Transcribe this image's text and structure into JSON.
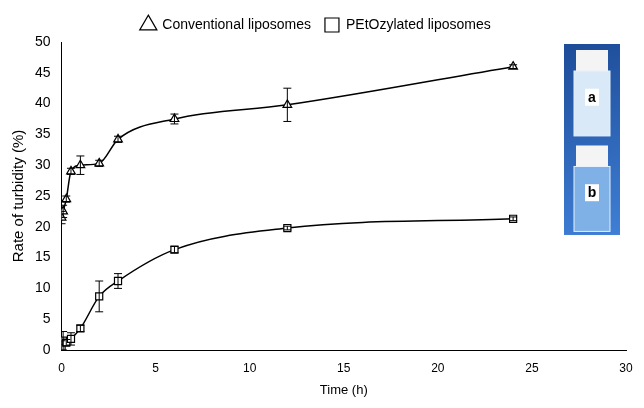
{
  "chart_data": {
    "type": "line",
    "x_label": "Time (h)",
    "y_label": "Rate of turbidity (%)",
    "x": [
      0,
      0.083,
      0.25,
      0.5,
      1,
      2,
      3,
      6,
      12,
      24
    ],
    "series": [
      {
        "name": "Conventional liposomes",
        "color": "#000000",
        "marker": "triangle",
        "values": [
          21.5,
          22.5,
          24.5,
          29,
          30,
          30.3,
          34.2,
          37.5,
          39.8,
          46
        ],
        "errors": [
          1,
          1,
          0.5,
          0.5,
          1.5,
          0.5,
          0.5,
          0.8,
          2.7,
          0.3
        ]
      },
      {
        "name": "PEtOzylated liposomes",
        "color": "#000000",
        "marker": "square",
        "values": [
          0.5,
          1.5,
          1.2,
          1.8,
          3.5,
          8.7,
          11.2,
          16.3,
          19.8,
          21.3
        ],
        "errors": [
          1,
          1.5,
          0.5,
          1,
          0.5,
          2.5,
          1.2,
          0.5,
          0.3,
          0.3
        ]
      }
    ],
    "xlim": [
      0,
      30
    ],
    "xticks": [
      0,
      5,
      10,
      15,
      20,
      25,
      30
    ],
    "ylim": [
      0,
      50
    ],
    "yticks": [
      0,
      5,
      10,
      15,
      20,
      25,
      30,
      35,
      40,
      45,
      50
    ],
    "grid": false,
    "legend": "top",
    "inset_labels": [
      "a",
      "b"
    ]
  }
}
